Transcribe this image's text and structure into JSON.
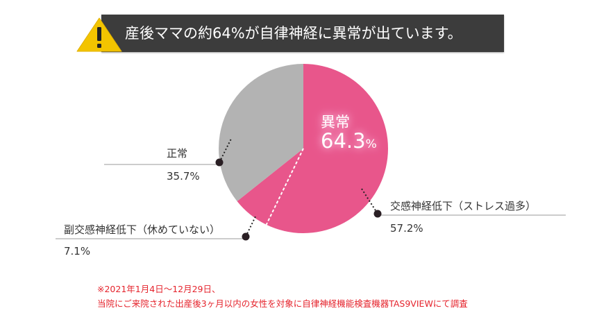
{
  "banner": {
    "title": "産後ママの約64%が自律神経に異常が出ています。",
    "icon": "warning-icon"
  },
  "chart_data": {
    "type": "pie",
    "slices": [
      {
        "label": "交感神経低下（ストレス過多）",
        "value": 57.2,
        "value_text": "57.2%",
        "color": "#e8568b"
      },
      {
        "label": "副交感神経低下（休めていない）",
        "value": 7.1,
        "value_text": "7.1%",
        "color": "#e8568b"
      },
      {
        "label": "正常",
        "value": 35.7,
        "value_text": "35.7%",
        "color": "#b3b3b3"
      }
    ],
    "highlight": {
      "label": "異常",
      "value": 64.3,
      "value_number": "64.3",
      "unit": "%"
    }
  },
  "footnote": {
    "line1": "※2021年1月4日〜12月29日、",
    "line2": "当院にご来院された出産後3ヶ月以内の女性を対象に自律神経機能検査機器TAS9VIEWにて調査"
  },
  "colors": {
    "abnormal": "#e8568b",
    "normal": "#b3b3b3",
    "banner_bg": "#3c3c3c",
    "warning": "#f3c400",
    "note": "#e5232c"
  }
}
